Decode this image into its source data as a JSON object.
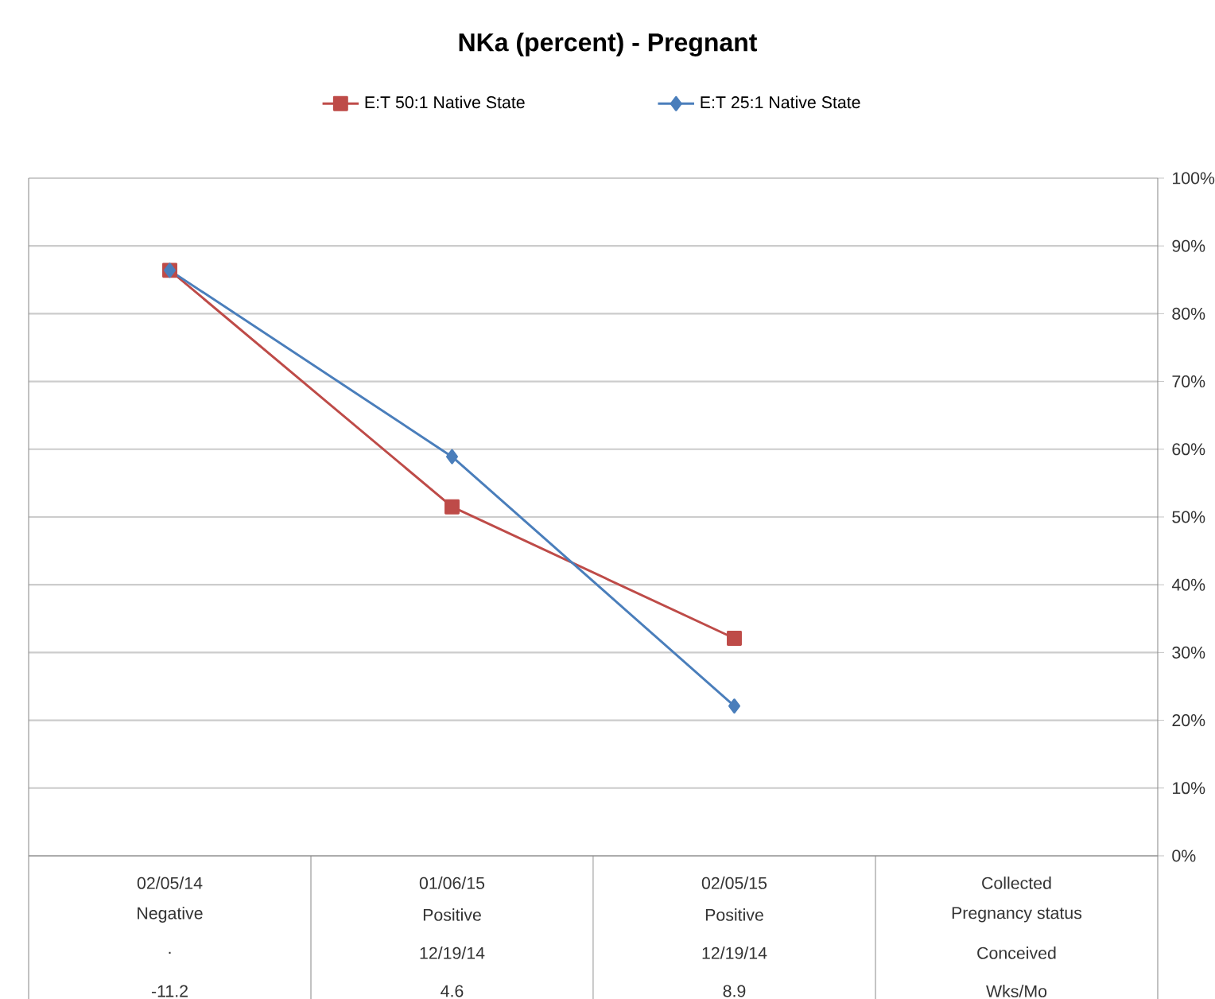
{
  "chart_data": {
    "type": "line",
    "title": "NKa (percent) - Pregnant",
    "categories": [
      "02/05/14",
      "01/06/15",
      "02/05/15",
      "Collected"
    ],
    "series": [
      {
        "name": "E:T 50:1 Native State",
        "color": "#be4b48",
        "marker": "square",
        "values": [
          86.4,
          51.5,
          32.1,
          null
        ]
      },
      {
        "name": "E:T 25:1 Native State",
        "color": "#4a7ebb",
        "marker": "diamond",
        "values": [
          86.4,
          58.9,
          22.1,
          null
        ]
      }
    ],
    "ylim": [
      0,
      100
    ],
    "yticks": [
      {
        "value": 0,
        "label": "0%"
      },
      {
        "value": 10,
        "label": "10%"
      },
      {
        "value": 20,
        "label": "20%"
      },
      {
        "value": 30,
        "label": "30%"
      },
      {
        "value": 40,
        "label": "40%"
      },
      {
        "value": 50,
        "label": "50%"
      },
      {
        "value": 60,
        "label": "60%"
      },
      {
        "value": 70,
        "label": "70%"
      },
      {
        "value": 80,
        "label": "80%"
      },
      {
        "value": 90,
        "label": "90%"
      },
      {
        "value": 100,
        "label": "100%"
      }
    ],
    "grid": "y",
    "legend": "top",
    "line_style": "solid",
    "annotations": [
      "Negative",
      "Positive",
      "Positive",
      "Pregnancy status",
      ".",
      "12/19/14",
      "12/19/14",
      "Conceived",
      "-11.2",
      "4.6",
      "8.9",
      "Wks/Mo"
    ]
  }
}
